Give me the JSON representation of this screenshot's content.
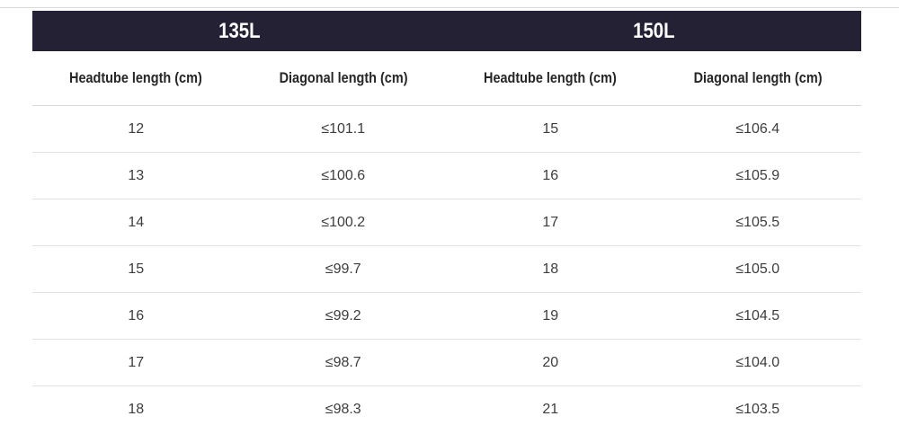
{
  "colors": {
    "band_background": "#252135",
    "band_text": "#ffffff",
    "column_header_text": "#262626",
    "cell_text": "#3d3d3d",
    "row_divider": "#e2e2e2",
    "top_rule": "#d9d9d9"
  },
  "table": {
    "groups": [
      {
        "label": "135L"
      },
      {
        "label": "150L"
      }
    ],
    "columns": [
      "Headtube length (cm)",
      "Diagonal length (cm)",
      "Headtube length (cm)",
      "Diagonal length (cm)"
    ],
    "rows": [
      [
        "12",
        "≤101.1",
        "15",
        "≤106.4"
      ],
      [
        "13",
        "≤100.6",
        "16",
        "≤105.9"
      ],
      [
        "14",
        "≤100.2",
        "17",
        "≤105.5"
      ],
      [
        "15",
        "≤99.7",
        "18",
        "≤105.0"
      ],
      [
        "16",
        "≤99.2",
        "19",
        "≤104.5"
      ],
      [
        "17",
        "≤98.7",
        "20",
        "≤104.0"
      ],
      [
        "18",
        "≤98.3",
        "21",
        "≤103.5"
      ]
    ]
  },
  "chart_data": [
    {
      "type": "table",
      "title": "135L",
      "columns": [
        "Headtube length (cm)",
        "Diagonal length (cm)"
      ],
      "rows": [
        [
          "12",
          "≤101.1"
        ],
        [
          "13",
          "≤100.6"
        ],
        [
          "14",
          "≤100.2"
        ],
        [
          "15",
          "≤99.7"
        ],
        [
          "16",
          "≤99.2"
        ],
        [
          "17",
          "≤98.7"
        ],
        [
          "18",
          "≤98.3"
        ]
      ]
    },
    {
      "type": "table",
      "title": "150L",
      "columns": [
        "Headtube length (cm)",
        "Diagonal length (cm)"
      ],
      "rows": [
        [
          "15",
          "≤106.4"
        ],
        [
          "16",
          "≤105.9"
        ],
        [
          "17",
          "≤105.5"
        ],
        [
          "18",
          "≤105.0"
        ],
        [
          "19",
          "≤104.5"
        ],
        [
          "20",
          "≤104.0"
        ],
        [
          "21",
          "≤103.5"
        ]
      ]
    }
  ]
}
